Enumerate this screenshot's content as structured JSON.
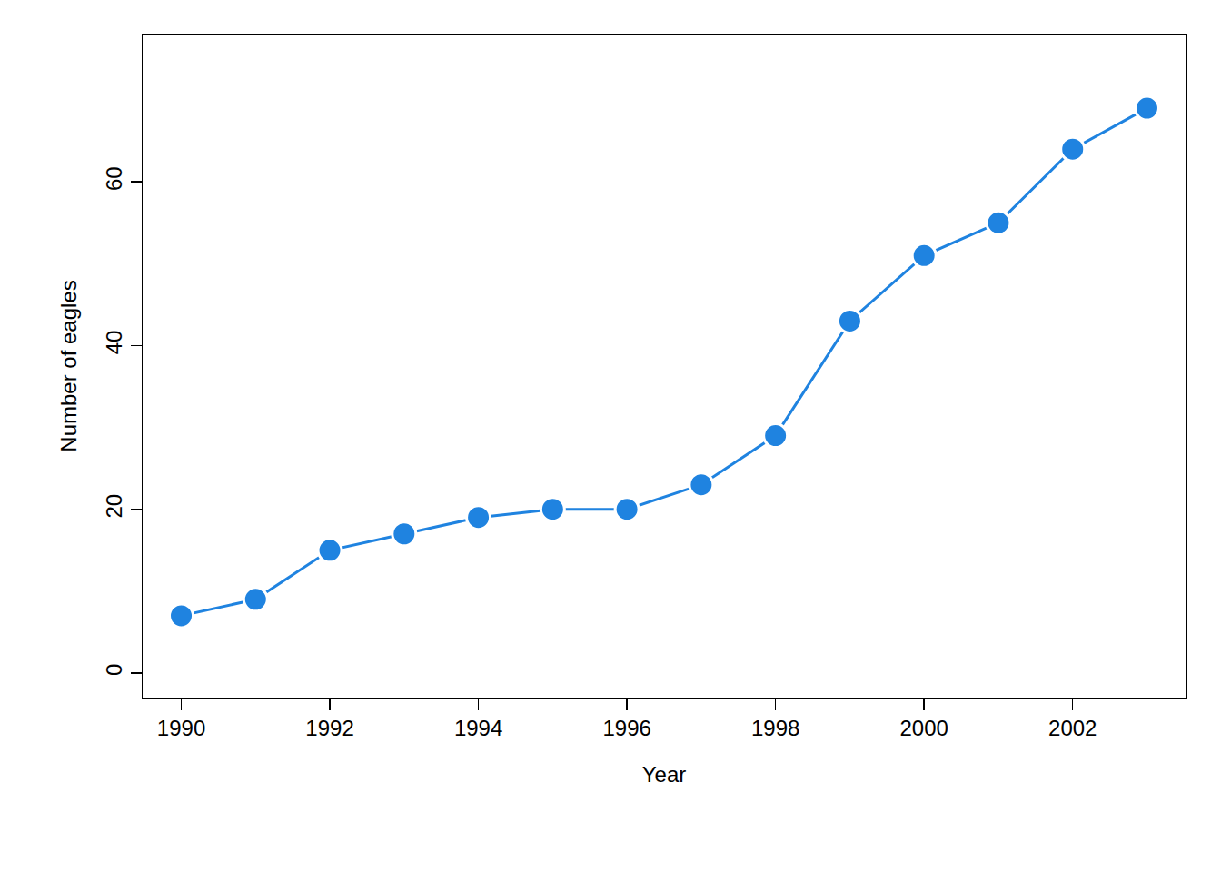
{
  "chart_data": {
    "type": "line",
    "x_label": "Year",
    "y_label": "Number of eagles",
    "x": [
      1990,
      1991,
      1992,
      1993,
      1994,
      1995,
      1996,
      1997,
      1998,
      1999,
      2000,
      2001,
      2002,
      2003
    ],
    "values": [
      7,
      9,
      15,
      17,
      19,
      20,
      20,
      23,
      29,
      43,
      51,
      55,
      64,
      69
    ],
    "color": "#1f83e0",
    "marker": "circle",
    "line_style": "solid",
    "xlim": [
      1989.48,
      2003.52
    ],
    "xticks": [
      1990,
      1992,
      1994,
      1996,
      1998,
      2000,
      2002
    ],
    "ylim": [
      -3,
      78
    ],
    "yticks": [
      0,
      20,
      40,
      60
    ],
    "grid": false
  }
}
